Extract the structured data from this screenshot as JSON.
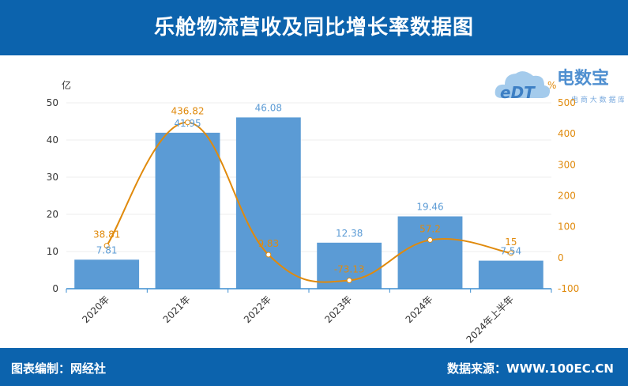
{
  "title": "乐舱物流营收及同比增长率数据图",
  "footer": {
    "left": "图表编制：网经社",
    "right": "数据来源：WWW.100EC.CN"
  },
  "logo": {
    "mark": "eDT",
    "name": "电数宝",
    "tagline": "电 商 大 数 据 库"
  },
  "chart_data": {
    "type": "bar",
    "categories": [
      "2020年",
      "2021年",
      "2022年",
      "2023年",
      "2024年",
      "2024年上半年"
    ],
    "series": [
      {
        "values": [
          7.81,
          41.95,
          46.08,
          12.38,
          19.46,
          7.54
        ],
        "labels": [
          "7.81",
          "41.95",
          "46.08",
          "12.38",
          "19.46",
          "7.54"
        ],
        "color": "#5b9bd5",
        "axis": "left"
      },
      {
        "type": "line",
        "values": [
          38.81,
          436.82,
          9.83,
          -73.13,
          57.2,
          15
        ],
        "labels": [
          "38.81",
          "436.82",
          "9.83",
          "-73.13",
          "57.2",
          "15"
        ],
        "color": "#e08a0c",
        "axis": "right"
      }
    ],
    "ylabel": "亿",
    "ylabel_right": "%",
    "ylim": [
      0,
      50
    ],
    "yticks": [
      "0",
      "10",
      "20",
      "30",
      "40",
      "50"
    ],
    "ylim_right": [
      -100,
      500
    ],
    "yticks_right": [
      "-100",
      "0",
      "100",
      "200",
      "300",
      "400",
      "500"
    ],
    "grid": true
  }
}
